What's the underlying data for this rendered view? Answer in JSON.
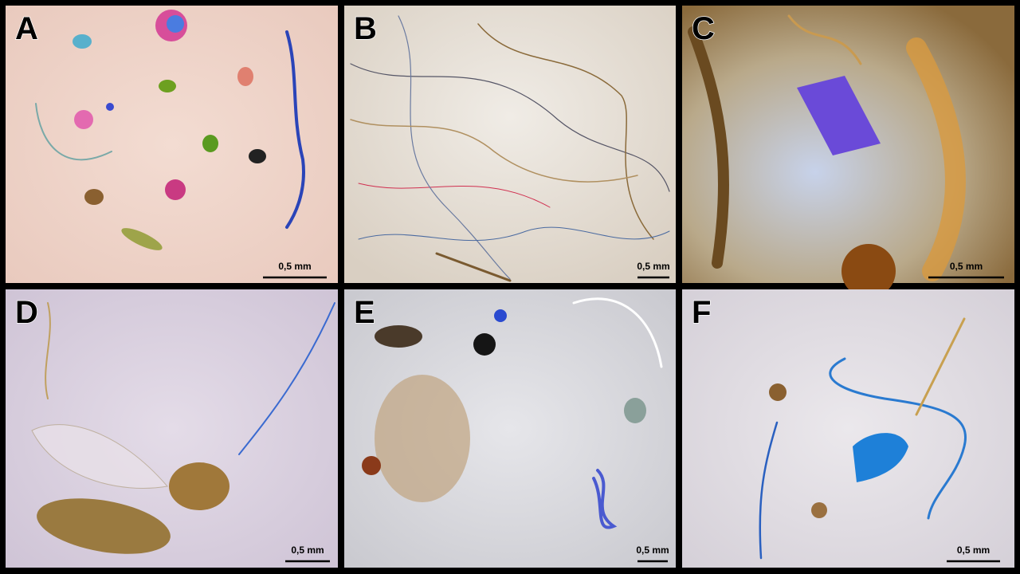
{
  "panels": [
    {
      "label": "A",
      "scale": "0,5 mm"
    },
    {
      "label": "B",
      "scale": "0,5 mm"
    },
    {
      "label": "C",
      "scale": "0,5 mm"
    },
    {
      "label": "D",
      "scale": "0,5 mm"
    },
    {
      "label": "E",
      "scale": "0,5 mm"
    },
    {
      "label": "F",
      "scale": "0,5 mm"
    }
  ]
}
